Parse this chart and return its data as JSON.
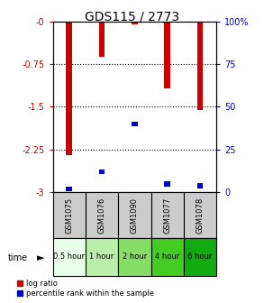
{
  "title": "GDS115 / 2773",
  "samples": [
    "GSM1075",
    "GSM1076",
    "GSM1090",
    "GSM1077",
    "GSM1078"
  ],
  "time_labels": [
    "0.5 hour",
    "1 hour",
    "2 hour",
    "4 hour",
    "6 hour"
  ],
  "log_ratios": [
    -2.35,
    -0.62,
    -0.05,
    -1.18,
    -1.55
  ],
  "percentile_ranks": [
    2.0,
    12.0,
    40.0,
    5.0,
    4.0
  ],
  "ylim_left": [
    -3,
    0
  ],
  "ylim_right": [
    0,
    100
  ],
  "yticks_left": [
    0,
    -0.75,
    -1.5,
    -2.25,
    -3
  ],
  "ytick_labels_left": [
    "-0",
    "-0.75",
    "-1.5",
    "-2.25",
    "-3"
  ],
  "yticks_right": [
    0,
    25,
    50,
    75,
    100
  ],
  "ytick_labels_right": [
    "0",
    "25",
    "50",
    "75",
    "100%"
  ],
  "bar_color_red": "#cc0000",
  "bar_color_blue": "#0000cc",
  "bar_width": 0.18,
  "time_bg_colors": [
    "#e8ffe8",
    "#bbeeaa",
    "#88dd66",
    "#44cc22",
    "#11aa11"
  ],
  "sample_bg_color": "#cccccc",
  "title_fontsize": 10,
  "axis_label_color_left": "#cc0000",
  "axis_label_color_right": "#0000cc",
  "tick_fontsize": 7,
  "sample_fontsize": 6,
  "time_fontsize": 6,
  "legend_fontsize": 6
}
